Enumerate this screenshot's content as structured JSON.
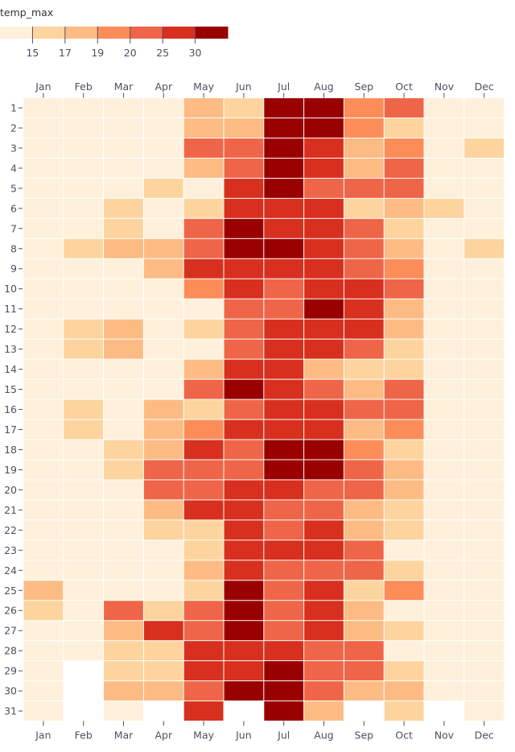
{
  "chart_data": {
    "type": "heatmap",
    "legend_title": "temp_max",
    "legend_placement": "top-left",
    "thresholds": [
      15,
      17,
      19,
      20,
      25,
      30
    ],
    "threshold_labels": [
      "15",
      "17",
      "19",
      "20",
      "25",
      "30"
    ],
    "colors": [
      "#fff0db",
      "#fdd49e",
      "#fdbb84",
      "#fc8d59",
      "#ef6548",
      "#d7301f",
      "#990000"
    ],
    "x_categories": [
      "Jan",
      "Feb",
      "Mar",
      "Apr",
      "May",
      "Jun",
      "Jul",
      "Aug",
      "Sep",
      "Oct",
      "Nov",
      "Dec"
    ],
    "y_categories": [
      "1",
      "2",
      "3",
      "4",
      "5",
      "6",
      "7",
      "8",
      "9",
      "10",
      "11",
      "12",
      "13",
      "14",
      "15",
      "16",
      "17",
      "18",
      "19",
      "20",
      "21",
      "22",
      "23",
      "24",
      "25",
      "26",
      "27",
      "28",
      "29",
      "30",
      "31"
    ],
    "values": [
      [
        12,
        12,
        12,
        12,
        18,
        16,
        32,
        32,
        19.5,
        22,
        12,
        12
      ],
      [
        12,
        12,
        12,
        12,
        18,
        18,
        32,
        32,
        19.5,
        16,
        12,
        12
      ],
      [
        12,
        12,
        12,
        12,
        22,
        22,
        32,
        27,
        18,
        19.5,
        12,
        16
      ],
      [
        12,
        12,
        12,
        12,
        18,
        22,
        32,
        27,
        18,
        22,
        12,
        12
      ],
      [
        12,
        12,
        12,
        16,
        12,
        27,
        32,
        22,
        22,
        22,
        12,
        12
      ],
      [
        12,
        12,
        16,
        12,
        16,
        27,
        27,
        27,
        16,
        18,
        16,
        12
      ],
      [
        12,
        12,
        16,
        12,
        22,
        32,
        27,
        27,
        22,
        16,
        12,
        12
      ],
      [
        12,
        16,
        18,
        18,
        22,
        32,
        32,
        27,
        22,
        18,
        12,
        16
      ],
      [
        12,
        12,
        12,
        18,
        27,
        27,
        27,
        27,
        22,
        19.5,
        12,
        12
      ],
      [
        12,
        12,
        12,
        12,
        19.5,
        27,
        22,
        27,
        27,
        22,
        12,
        12
      ],
      [
        12,
        12,
        12,
        12,
        12,
        22,
        22,
        32,
        27,
        18,
        12,
        12
      ],
      [
        12,
        16,
        18,
        12,
        16,
        22,
        27,
        27,
        27,
        18,
        12,
        12
      ],
      [
        12,
        16,
        18,
        12,
        12,
        22,
        27,
        27,
        22,
        16,
        12,
        12
      ],
      [
        12,
        12,
        12,
        12,
        18,
        27,
        27,
        18,
        16,
        16,
        12,
        12
      ],
      [
        12,
        12,
        12,
        12,
        22,
        32,
        27,
        22,
        18,
        22,
        12,
        12
      ],
      [
        12,
        16,
        12,
        18,
        16,
        22,
        27,
        27,
        22,
        22,
        12,
        12
      ],
      [
        12,
        16,
        12,
        18,
        19.5,
        27,
        27,
        27,
        18,
        19.5,
        12,
        12
      ],
      [
        12,
        12,
        16,
        18,
        27,
        22,
        32,
        32,
        19.5,
        16,
        12,
        12
      ],
      [
        12,
        12,
        16,
        22,
        22,
        22,
        32,
        32,
        22,
        18,
        12,
        12
      ],
      [
        12,
        12,
        12,
        22,
        22,
        27,
        27,
        22,
        22,
        18,
        12,
        12
      ],
      [
        12,
        12,
        12,
        18,
        27,
        27,
        22,
        22,
        18,
        16,
        12,
        12
      ],
      [
        12,
        12,
        12,
        16,
        16,
        27,
        22,
        27,
        18,
        16,
        12,
        12
      ],
      [
        12,
        12,
        12,
        12,
        16,
        27,
        27,
        27,
        22,
        12,
        12,
        12
      ],
      [
        12,
        12,
        12,
        12,
        18,
        27,
        22,
        22,
        22,
        16,
        12,
        12
      ],
      [
        18,
        12,
        12,
        12,
        16,
        32,
        22,
        27,
        16,
        19.5,
        12,
        12
      ],
      [
        16,
        12,
        22,
        16,
        22,
        32,
        22,
        27,
        18,
        12,
        12,
        12
      ],
      [
        12,
        12,
        18,
        27,
        22,
        32,
        22,
        27,
        18,
        16,
        12,
        12
      ],
      [
        12,
        12,
        16,
        16,
        27,
        27,
        27,
        22,
        22,
        12,
        12,
        12
      ],
      [
        12,
        null,
        16,
        16,
        27,
        27,
        32,
        22,
        22,
        16,
        12,
        12
      ],
      [
        12,
        null,
        18,
        18,
        22,
        32,
        32,
        22,
        18,
        18,
        12,
        12
      ],
      [
        12,
        null,
        12,
        null,
        27,
        null,
        32,
        18,
        null,
        16,
        null,
        12
      ]
    ]
  }
}
